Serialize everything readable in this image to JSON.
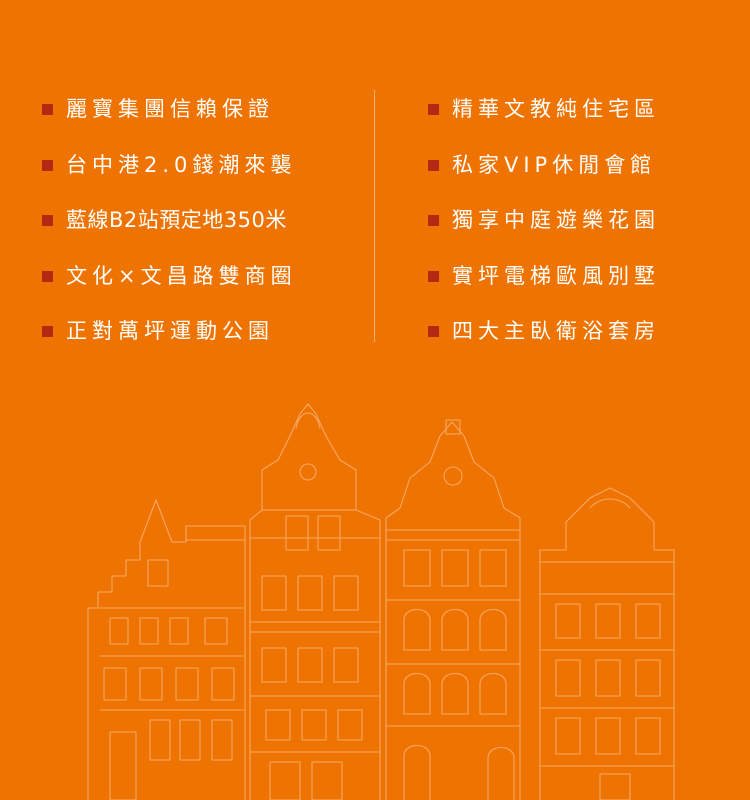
{
  "colors": {
    "background": "#ef7300",
    "bullet": "#b32a12",
    "text": "#ffffff"
  },
  "features": {
    "left": [
      {
        "text": "麗寶集團信賴保證"
      },
      {
        "text": "台中港2.0錢潮來襲"
      },
      {
        "text": "藍線B2站預定地350米"
      },
      {
        "text": "文化×文昌路雙商圈"
      },
      {
        "text": "正對萬坪運動公園"
      }
    ],
    "right": [
      {
        "text": "精華文教純住宅區"
      },
      {
        "text": "私家VIP休閒會館"
      },
      {
        "text": "獨享中庭遊樂花園"
      },
      {
        "text": "實坪電梯歐風別墅"
      },
      {
        "text": "四大主臥衛浴套房"
      }
    ]
  },
  "illustration": {
    "icon": "european-townhouses-line-art"
  }
}
